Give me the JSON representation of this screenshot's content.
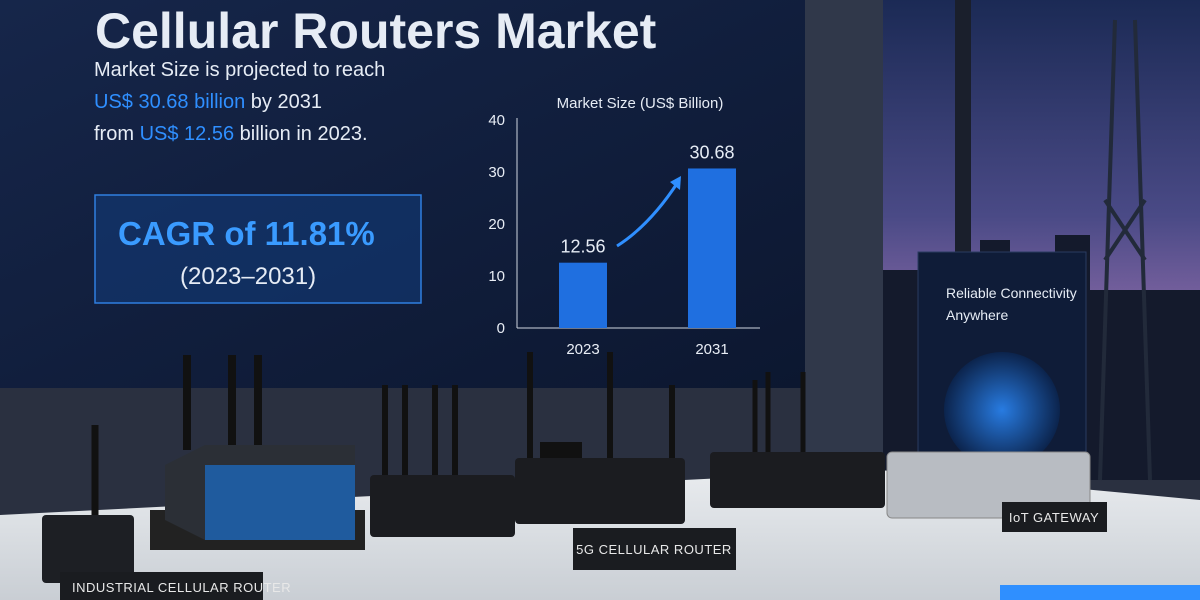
{
  "screen": {
    "title": "Cellular Routers Market",
    "projection": {
      "line1": "Market Size is projected to reach",
      "value2031": "US$ 30.68 billion",
      "by": "by 2031",
      "from": "from",
      "value2023": "US$ 12.56",
      "in": "billion in 2023."
    },
    "cagr": "CAGR of 11.81%",
    "period": "(2023–2031)"
  },
  "chart_data": {
    "type": "bar",
    "title": "Market Size (US$ Billion)",
    "categories": [
      "2023",
      "2031"
    ],
    "values": [
      12.56,
      30.68
    ],
    "color": "#1f6fe0",
    "ylim": [
      0,
      40
    ],
    "yticks": [
      0,
      10,
      20,
      30,
      40
    ],
    "grid": false
  },
  "panel": {
    "text": [
      "Reliable Connectivity",
      "Anywhere"
    ]
  },
  "product_labels": [
    "INDUSTRIAL CELLULAR ROUTER",
    "5G CELLULAR ROUTER",
    "IoT GATEWAY"
  ]
}
